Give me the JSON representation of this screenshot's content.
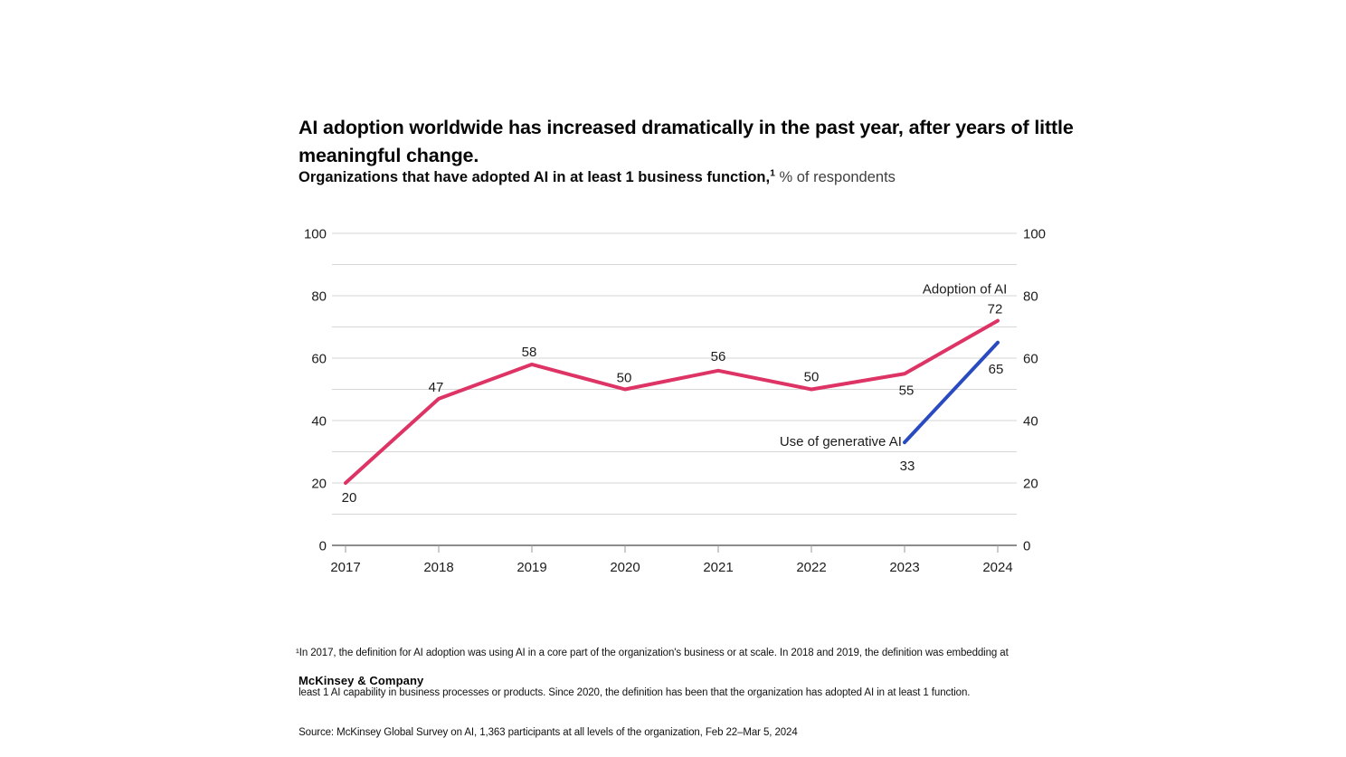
{
  "header": {
    "title": "AI adoption worldwide has increased dramatically in the past year, after years of little meaningful change.",
    "subtitle": {
      "bold": "Organizations that have adopted AI in at least 1 business function,",
      "superscript": "1",
      "normal": "% of respondents"
    }
  },
  "chart_data": {
    "type": "line",
    "title": "Organizations that have adopted AI in at least 1 business function, % of respondents",
    "x": [
      2017,
      2018,
      2019,
      2020,
      2021,
      2022,
      2023,
      2024
    ],
    "ylim": [
      0,
      100
    ],
    "yticks_labeled": [
      0,
      20,
      40,
      60,
      80,
      100
    ],
    "grid_interval": 10,
    "grid": true,
    "axis_labels_both_sides": true,
    "legend_position": "inline-annotations",
    "series": [
      {
        "name": "Adoption of AI",
        "color": "#dd3465",
        "x": [
          2017,
          2018,
          2019,
          2020,
          2021,
          2022,
          2023,
          2024
        ],
        "values": [
          20,
          47,
          58,
          50,
          56,
          50,
          55,
          72
        ],
        "label_offsets": [
          [
            4,
            16
          ],
          [
            -3,
            -13
          ],
          [
            -3,
            -14
          ],
          [
            -1,
            -13
          ],
          [
            0,
            -16
          ],
          [
            0,
            -14
          ],
          [
            2,
            18
          ],
          [
            -3,
            -13
          ]
        ],
        "name_label": {
          "x": 2024.1,
          "y": 82.2,
          "anchor": "end"
        }
      },
      {
        "name": "Use of generative AI",
        "color": "#2a4bc0",
        "x": [
          2023,
          2024
        ],
        "values": [
          33,
          65
        ],
        "label_offsets": [
          [
            3,
            26
          ],
          [
            -2,
            29
          ]
        ],
        "name_label": {
          "x": 2022.97,
          "y": 33.3,
          "anchor": "end"
        }
      }
    ]
  },
  "colors": {
    "gridline": "#d6d6d6",
    "axis_line": "#474747",
    "tick": "#9a9a9a",
    "label_text": "#1c1c1c"
  },
  "footnote": {
    "line1": "¹In 2017, the definition for AI adoption was using AI in a core part of the organization's business or at scale. In 2018 and 2019, the definition was embedding at",
    "line2": " least 1 AI capability in business processes or products. Since 2020, the definition has been that the organization has adopted AI in at least 1 function.",
    "source": " Source: McKinsey Global Survey on AI, 1,363 participants at all levels of the organization, Feb 22–Mar 5, 2024"
  },
  "branding": {
    "company": "McKinsey & Company"
  }
}
